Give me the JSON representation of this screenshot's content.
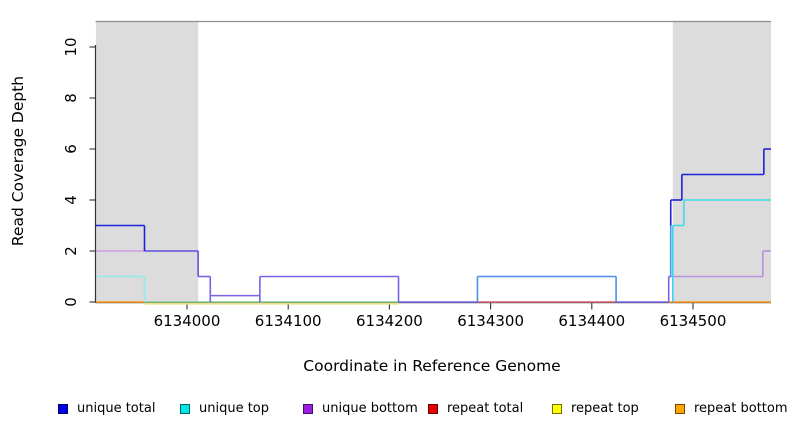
{
  "figure": {
    "y_axis": {
      "label": "Read Coverage Depth",
      "tick_labels": [
        "0",
        "2",
        "4",
        "6",
        "8",
        "10"
      ]
    },
    "x_axis": {
      "label": "Coordinate in Reference Genome",
      "tick_labels": [
        "6134000",
        "6134100",
        "6134200",
        "6134300",
        "6134400",
        "6134500"
      ]
    },
    "legend": [
      {
        "label": "unique total",
        "color": "#0000e8"
      },
      {
        "label": "unique top",
        "color": "#00e6e6"
      },
      {
        "label": "unique bottom",
        "color": "#9b1fe0"
      },
      {
        "label": "repeat total",
        "color": "#e60000"
      },
      {
        "label": "repeat top",
        "color": "#ffff00"
      },
      {
        "label": "repeat bottom",
        "color": "#ffa500"
      }
    ]
  },
  "chart_data": {
    "type": "line",
    "subtype": "step-coverage",
    "title": "",
    "xlabel": "Coordinate in Reference Genome",
    "ylabel": "Read Coverage Depth",
    "xlim": [
      6133910,
      6134577
    ],
    "ylim": [
      0,
      11
    ],
    "xticks": [
      6134000,
      6134100,
      6134200,
      6134300,
      6134400,
      6134500
    ],
    "yticks": [
      0,
      2,
      4,
      6,
      8,
      10
    ],
    "grid": false,
    "legend_position": "bottom",
    "frame_top_value": 11,
    "shaded_regions": [
      {
        "x0": 6133910,
        "x1": 6134011,
        "color": "#dcdcdc"
      },
      {
        "x0": 6134480,
        "x1": 6134577,
        "color": "#dcdcdc"
      }
    ],
    "series": [
      {
        "name": "unique total",
        "color": "#0000e8",
        "end": 6134577,
        "steps": [
          [
            6133910,
            3
          ],
          [
            6133958,
            2
          ],
          [
            6134011,
            1
          ],
          [
            6134023,
            0
          ],
          [
            6134072,
            1
          ],
          [
            6134209,
            0
          ],
          [
            6134287,
            1
          ],
          [
            6134424,
            0
          ],
          [
            6134476,
            1
          ],
          [
            6134478,
            4
          ],
          [
            6134489,
            5
          ],
          [
            6134570,
            6
          ]
        ]
      },
      {
        "name": "unique top",
        "color": "#00e6e6",
        "end": 6134577,
        "steps": [
          [
            6133910,
            1
          ],
          [
            6133958,
            0
          ],
          [
            6134287,
            1
          ],
          [
            6134424,
            0
          ],
          [
            6134480,
            3
          ],
          [
            6134491,
            4
          ]
        ]
      },
      {
        "name": "unique bottom",
        "color": "#9b1fe0",
        "end": 6134577,
        "steps": [
          [
            6133910,
            2
          ],
          [
            6134011,
            1
          ],
          [
            6134023,
            0
          ],
          [
            6134072,
            1
          ],
          [
            6134209,
            0
          ],
          [
            6134476,
            1
          ],
          [
            6134569,
            2
          ]
        ]
      },
      {
        "name": "repeat total",
        "color": "#e60000",
        "end": 6134577,
        "steps": [
          [
            6133910,
            0
          ]
        ]
      },
      {
        "name": "repeat top",
        "color": "#ffff00",
        "end": 6134577,
        "steps": [
          [
            6133910,
            0
          ]
        ]
      },
      {
        "name": "repeat bottom",
        "color": "#ffa500",
        "end": 6134577,
        "steps": [
          [
            6133910,
            0
          ]
        ]
      }
    ],
    "visual": {
      "horizontals": [
        {
          "x0": 6133910,
          "x1": 6133958,
          "y": 3,
          "c": "#1f1fdd"
        },
        {
          "x0": 6133910,
          "x1": 6133958,
          "y": 2,
          "c": "#c9a0e0"
        },
        {
          "x0": 6133910,
          "x1": 6133958,
          "y": 1,
          "c": "#93ecec"
        },
        {
          "x0": 6133910,
          "x1": 6133958,
          "y": 0,
          "c": "#ff9812"
        },
        {
          "x0": 6133958,
          "x1": 6134209,
          "y": 0,
          "c": "#e6e08a",
          "o": 1.8
        },
        {
          "x0": 6133958,
          "x1": 6134209,
          "y": 0,
          "c": "#8ccb8c"
        },
        {
          "x0": 6133958,
          "x1": 6134011,
          "y": 2,
          "c": "#5f4fdd"
        },
        {
          "x0": 6134011,
          "x1": 6134023,
          "y": 1,
          "c": "#7465e8"
        },
        {
          "x0": 6134023,
          "x1": 6134072,
          "y": 0.25,
          "c": "#7465e8"
        },
        {
          "x0": 6134072,
          "x1": 6134209,
          "y": 1,
          "c": "#7465e8"
        },
        {
          "x0": 6134209,
          "x1": 6134287,
          "y": 0,
          "c": "#7465e8"
        },
        {
          "x0": 6134287,
          "x1": 6134424,
          "y": 1,
          "c": "#4a90e8"
        },
        {
          "x0": 6134287,
          "x1": 6134424,
          "y": 0,
          "c": "#d25f6e"
        },
        {
          "x0": 6134424,
          "x1": 6134476,
          "y": 0,
          "c": "#7465e8"
        },
        {
          "x0": 6134476,
          "x1": 6134577,
          "y": 0,
          "c": "#ff9812"
        },
        {
          "x0": 6134476,
          "x1": 6134478,
          "y": 1,
          "c": "#7465e8"
        },
        {
          "x0": 6134478,
          "x1": 6134569,
          "y": 1,
          "c": "#bd8fe0"
        },
        {
          "x0": 6134569,
          "x1": 6134577,
          "y": 2,
          "c": "#bd8fe0"
        },
        {
          "x0": 6134478,
          "x1": 6134489,
          "y": 4,
          "c": "#2020d8"
        },
        {
          "x0": 6134489,
          "x1": 6134570,
          "y": 5,
          "c": "#2020d8"
        },
        {
          "x0": 6134570,
          "x1": 6134577,
          "y": 6,
          "c": "#2020d8"
        },
        {
          "x0": 6134480,
          "x1": 6134491,
          "y": 3,
          "c": "#3fd9e8"
        },
        {
          "x0": 6134491,
          "x1": 6134577,
          "y": 4,
          "c": "#3fd9e8"
        }
      ],
      "verticals": [
        {
          "x": 6133958,
          "y0": 2,
          "y1": 3,
          "c": "#1f1fdd"
        },
        {
          "x": 6133958,
          "y0": 0,
          "y1": 1,
          "c": "#93ecec"
        },
        {
          "x": 6134011,
          "y0": 1,
          "y1": 2,
          "c": "#5f4fdd"
        },
        {
          "x": 6134023,
          "y0": 0,
          "y1": 1,
          "c": "#7465e8"
        },
        {
          "x": 6134072,
          "y0": 0,
          "y1": 1,
          "c": "#7465e8"
        },
        {
          "x": 6134209,
          "y0": 0,
          "y1": 1,
          "c": "#7465e8"
        },
        {
          "x": 6134287,
          "y0": 0,
          "y1": 1,
          "c": "#4a90e8"
        },
        {
          "x": 6134424,
          "y0": 0,
          "y1": 1,
          "c": "#4a90e8"
        },
        {
          "x": 6134476,
          "y0": 0,
          "y1": 1,
          "c": "#7465e8"
        },
        {
          "x": 6134478,
          "y0": 1,
          "y1": 3.1,
          "c": "#3e9af0"
        },
        {
          "x": 6134478,
          "y0": 3,
          "y1": 4,
          "c": "#2020d8"
        },
        {
          "x": 6134480,
          "y0": 0,
          "y1": 3,
          "c": "#3ed2f0"
        },
        {
          "x": 6134489,
          "y0": 4,
          "y1": 5,
          "c": "#2020d8"
        },
        {
          "x": 6134491,
          "y0": 3,
          "y1": 4,
          "c": "#3fd9e8"
        },
        {
          "x": 6134569,
          "y0": 1,
          "y1": 2,
          "c": "#bd8fe0"
        },
        {
          "x": 6134570,
          "y0": 5,
          "y1": 6,
          "c": "#2020d8"
        }
      ]
    }
  }
}
